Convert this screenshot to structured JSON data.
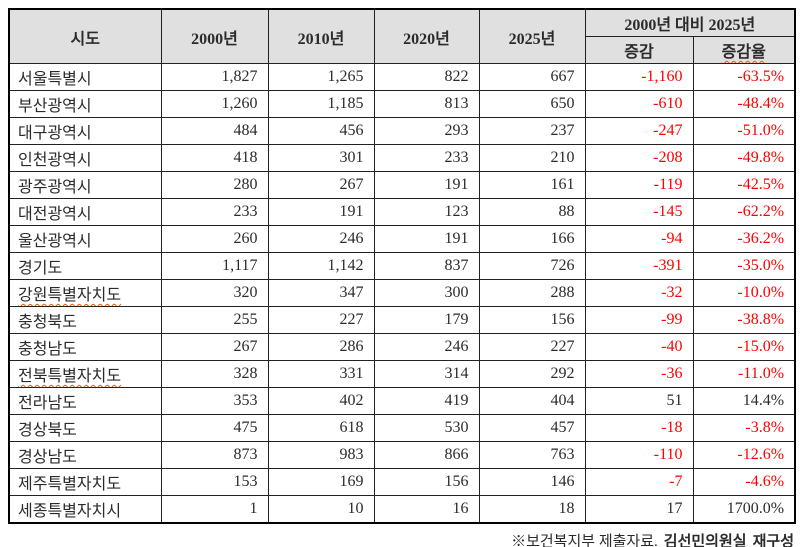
{
  "colors": {
    "negative_value": "#ff0000",
    "header_background": "#e0e0e0",
    "spellcheck_underline": "#ef5a00",
    "text": "#2b2b2b"
  },
  "table": {
    "header": {
      "col_region": "시도",
      "col_2000": "2000년",
      "col_2010": "2010년",
      "col_2020": "2020년",
      "col_2025": "2025년",
      "col_compare_group": "2000년 대비 2025년",
      "col_change": "증감",
      "col_change_rate": "증감율"
    },
    "rows": [
      {
        "region": "서울특별시",
        "y2000": "1,827",
        "y2010": "1,265",
        "y2020": "822",
        "y2025": "667",
        "change": "-1,160",
        "rate": "-63.5%",
        "spellcheck": false
      },
      {
        "region": "부산광역시",
        "y2000": "1,260",
        "y2010": "1,185",
        "y2020": "813",
        "y2025": "650",
        "change": "-610",
        "rate": "-48.4%",
        "spellcheck": false
      },
      {
        "region": "대구광역시",
        "y2000": "484",
        "y2010": "456",
        "y2020": "293",
        "y2025": "237",
        "change": "-247",
        "rate": "-51.0%",
        "spellcheck": false
      },
      {
        "region": "인천광역시",
        "y2000": "418",
        "y2010": "301",
        "y2020": "233",
        "y2025": "210",
        "change": "-208",
        "rate": "-49.8%",
        "spellcheck": false
      },
      {
        "region": "광주광역시",
        "y2000": "280",
        "y2010": "267",
        "y2020": "191",
        "y2025": "161",
        "change": "-119",
        "rate": "-42.5%",
        "spellcheck": false
      },
      {
        "region": "대전광역시",
        "y2000": "233",
        "y2010": "191",
        "y2020": "123",
        "y2025": "88",
        "change": "-145",
        "rate": "-62.2%",
        "spellcheck": false
      },
      {
        "region": "울산광역시",
        "y2000": "260",
        "y2010": "246",
        "y2020": "191",
        "y2025": "166",
        "change": "-94",
        "rate": "-36.2%",
        "spellcheck": false
      },
      {
        "region": "경기도",
        "y2000": "1,117",
        "y2010": "1,142",
        "y2020": "837",
        "y2025": "726",
        "change": "-391",
        "rate": "-35.0%",
        "spellcheck": false
      },
      {
        "region": "강원특별자치도",
        "y2000": "320",
        "y2010": "347",
        "y2020": "300",
        "y2025": "288",
        "change": "-32",
        "rate": "-10.0%",
        "spellcheck": true
      },
      {
        "region": "충청북도",
        "y2000": "255",
        "y2010": "227",
        "y2020": "179",
        "y2025": "156",
        "change": "-99",
        "rate": "-38.8%",
        "spellcheck": false
      },
      {
        "region": "충청남도",
        "y2000": "267",
        "y2010": "286",
        "y2020": "246",
        "y2025": "227",
        "change": "-40",
        "rate": "-15.0%",
        "spellcheck": false
      },
      {
        "region": "전북특별자치도",
        "y2000": "328",
        "y2010": "331",
        "y2020": "314",
        "y2025": "292",
        "change": "-36",
        "rate": "-11.0%",
        "spellcheck": true
      },
      {
        "region": "전라남도",
        "y2000": "353",
        "y2010": "402",
        "y2020": "419",
        "y2025": "404",
        "change": "51",
        "rate": "14.4%",
        "spellcheck": false
      },
      {
        "region": "경상북도",
        "y2000": "475",
        "y2010": "618",
        "y2020": "530",
        "y2025": "457",
        "change": "-18",
        "rate": "-3.8%",
        "spellcheck": false
      },
      {
        "region": "경상남도",
        "y2000": "873",
        "y2010": "983",
        "y2020": "866",
        "y2025": "763",
        "change": "-110",
        "rate": "-12.6%",
        "spellcheck": false
      },
      {
        "region": "제주특별자치도",
        "y2000": "153",
        "y2010": "169",
        "y2020": "156",
        "y2025": "146",
        "change": "-7",
        "rate": "-4.6%",
        "spellcheck": false
      },
      {
        "region": "세종특별자치시",
        "y2000": "1",
        "y2010": "10",
        "y2020": "16",
        "y2025": "18",
        "change": "17",
        "rate": "1700.0%",
        "spellcheck": false
      }
    ]
  },
  "footnote": {
    "source": "※보건복지부 제출자료.",
    "office": "김선민의원실",
    "note": "재구성"
  }
}
